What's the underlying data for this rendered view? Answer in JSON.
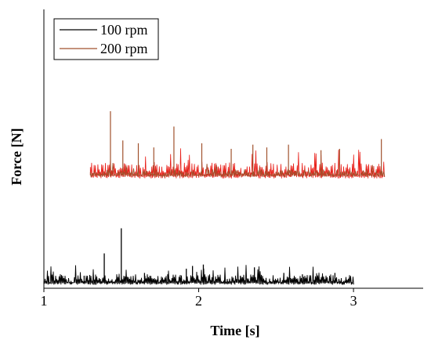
{
  "chart_data": {
    "type": "line",
    "title": "",
    "xlabel": "Time [s]",
    "ylabel": "Force [N]",
    "xlim": [
      1.0,
      3.45
    ],
    "ylim": [
      0,
      10
    ],
    "x_ticks": [
      "1",
      "2",
      "3"
    ],
    "x_tick_values": [
      1,
      2,
      3
    ],
    "y_ticks_shown": false,
    "grid": false,
    "legend_position": "top-left",
    "series": [
      {
        "name": "100 rpm",
        "color": "#000000",
        "x_range": [
          1.0,
          3.0
        ],
        "baseline": 0.2,
        "spikes": [
          {
            "x": 1.39,
            "y": 1.25
          },
          {
            "x": 1.5,
            "y": 2.15
          },
          {
            "x": 1.26,
            "y": 0.45
          },
          {
            "x": 1.65,
            "y": 0.55
          },
          {
            "x": 1.8,
            "y": 0.5
          },
          {
            "x": 1.92,
            "y": 0.7
          },
          {
            "x": 1.96,
            "y": 0.8
          },
          {
            "x": 2.03,
            "y": 0.85
          },
          {
            "x": 2.17,
            "y": 0.35
          },
          {
            "x": 2.27,
            "y": 0.45
          },
          {
            "x": 2.36,
            "y": 0.75
          },
          {
            "x": 2.55,
            "y": 0.55
          },
          {
            "x": 2.67,
            "y": 0.5
          },
          {
            "x": 2.77,
            "y": 0.35
          },
          {
            "x": 2.88,
            "y": 0.55
          },
          {
            "x": 2.95,
            "y": 0.3
          }
        ]
      },
      {
        "name": "200 rpm",
        "color": "#a0522d",
        "highlight_color": "#e8201a",
        "x_range": [
          1.3,
          3.2
        ],
        "baseline": 4.05,
        "spikes": [
          {
            "x": 1.43,
            "y": 6.35
          },
          {
            "x": 1.51,
            "y": 5.3
          },
          {
            "x": 1.61,
            "y": 5.2
          },
          {
            "x": 1.71,
            "y": 5.05
          },
          {
            "x": 1.84,
            "y": 5.8
          },
          {
            "x": 2.02,
            "y": 5.2
          },
          {
            "x": 2.21,
            "y": 5.0
          },
          {
            "x": 2.35,
            "y": 5.15
          },
          {
            "x": 2.44,
            "y": 5.05
          },
          {
            "x": 2.58,
            "y": 5.15
          },
          {
            "x": 2.79,
            "y": 4.95
          },
          {
            "x": 2.91,
            "y": 5.0
          },
          {
            "x": 3.18,
            "y": 5.35
          }
        ]
      }
    ]
  }
}
